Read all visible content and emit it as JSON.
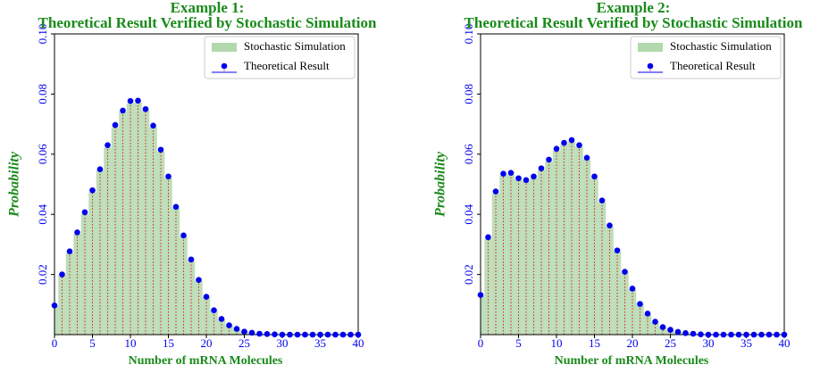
{
  "chart_data": [
    {
      "type": "bar",
      "title": "Example 1:",
      "subtitle": "Theoretical Result Verified by Stochastic Simulation",
      "xlabel": "Number of mRNA Molecules",
      "ylabel": "Probability",
      "x": [
        0,
        1,
        2,
        3,
        4,
        5,
        6,
        7,
        8,
        9,
        10,
        11,
        12,
        13,
        14,
        15,
        16,
        17,
        18,
        19,
        20,
        21,
        22,
        23,
        24,
        25,
        26,
        27,
        28,
        29,
        30,
        31,
        32,
        33,
        34,
        35,
        36,
        37,
        38,
        39,
        40
      ],
      "series": [
        {
          "name": "Stochastic Simulation",
          "color": "#b2d8ad",
          "type": "bar",
          "values": [
            0.0095,
            0.0197,
            0.0272,
            0.0335,
            0.0401,
            0.0474,
            0.0548,
            0.0622,
            0.069,
            0.0741,
            0.077,
            0.0771,
            0.0746,
            0.069,
            0.0609,
            0.0521,
            0.042,
            0.0327,
            0.0247,
            0.0179,
            0.0124,
            0.008,
            0.0051,
            0.003,
            0.0018,
            0.001,
            0.0006,
            0.0003,
            0.0002,
            0.0001,
            0,
            0,
            0,
            0,
            0,
            0,
            0,
            0,
            0,
            0,
            0
          ]
        },
        {
          "name": "Theoretical Result",
          "color": "#0000ee",
          "type": "stem",
          "values": [
            0.0097,
            0.02,
            0.0277,
            0.034,
            0.0407,
            0.048,
            0.055,
            0.063,
            0.0697,
            0.0745,
            0.0777,
            0.0778,
            0.075,
            0.0695,
            0.0615,
            0.0526,
            0.0425,
            0.033,
            0.025,
            0.0182,
            0.0126,
            0.0081,
            0.0052,
            0.0031,
            0.0019,
            0.001,
            0.0006,
            0.0003,
            0.0002,
            0.0001,
            0,
            0,
            0,
            0,
            0,
            0,
            0,
            0,
            0,
            0,
            0
          ]
        }
      ],
      "xlim": [
        0,
        40
      ],
      "xticks": [
        0,
        5,
        10,
        15,
        20,
        25,
        30,
        35,
        40
      ],
      "ylim": [
        0,
        0.1
      ],
      "yticks": [
        0.02,
        0.04,
        0.06,
        0.08,
        {
          "value": 0.1,
          "label": "0.10"
        }
      ],
      "legend": "upper right"
    },
    {
      "type": "bar",
      "title": "Example 2:",
      "subtitle": "Theoretical Result Verified by Stochastic Simulation",
      "xlabel": "Number of mRNA Molecules",
      "ylabel": "Probability",
      "x": [
        0,
        1,
        2,
        3,
        4,
        5,
        6,
        7,
        8,
        9,
        10,
        11,
        12,
        13,
        14,
        15,
        16,
        17,
        18,
        19,
        20,
        21,
        22,
        23,
        24,
        25,
        26,
        27,
        28,
        29,
        30,
        31,
        32,
        33,
        34,
        35,
        36,
        37,
        38,
        39,
        40
      ],
      "series": [
        {
          "name": "Stochastic Simulation",
          "color": "#b2d8ad",
          "type": "bar",
          "values": [
            0.013,
            0.032,
            0.047,
            0.053,
            0.0533,
            0.0516,
            0.051,
            0.0521,
            0.0548,
            0.0577,
            0.0612,
            0.0633,
            0.0642,
            0.0625,
            0.0583,
            0.0521,
            0.0441,
            0.0359,
            0.0277,
            0.0206,
            0.0151,
            0.01,
            0.0068,
            0.0042,
            0.0024,
            0.0015,
            0.0009,
            0.0005,
            0.0003,
            0.0001,
            0,
            0,
            0,
            0,
            0,
            0,
            0,
            0,
            0,
            0,
            0
          ]
        },
        {
          "name": "Theoretical Result",
          "color": "#0000ee",
          "type": "stem",
          "values": [
            0.0132,
            0.0324,
            0.0476,
            0.0535,
            0.0538,
            0.052,
            0.0514,
            0.0526,
            0.0553,
            0.0582,
            0.0618,
            0.0638,
            0.0647,
            0.063,
            0.0588,
            0.0526,
            0.0446,
            0.0363,
            0.028,
            0.0209,
            0.0153,
            0.0102,
            0.007,
            0.0043,
            0.0025,
            0.0016,
            0.0009,
            0.0005,
            0.0003,
            0.0001,
            0,
            0,
            0,
            0,
            0,
            0,
            0,
            0,
            0,
            0,
            0
          ]
        }
      ],
      "xlim": [
        0,
        40
      ],
      "xticks": [
        0,
        5,
        10,
        15,
        20,
        25,
        30,
        35,
        40
      ],
      "ylim": [
        0,
        0.1
      ],
      "yticks": [
        0.02,
        0.04,
        0.06,
        0.08,
        {
          "value": 0.1,
          "label": "0.10"
        }
      ],
      "legend": "upper right"
    }
  ]
}
